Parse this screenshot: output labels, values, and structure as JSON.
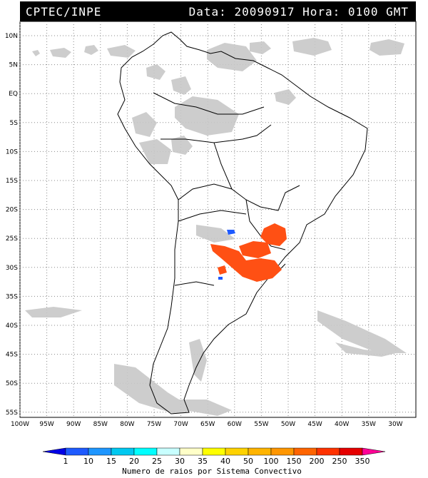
{
  "header": {
    "source": "CPTEC/INPE",
    "datetime": "Data: 20090917 Hora: 0100 GMT"
  },
  "axes": {
    "lat_labels": [
      "10N",
      "5N",
      "EQ",
      "5S",
      "10S",
      "15S",
      "20S",
      "25S",
      "30S",
      "35S",
      "40S",
      "45S",
      "50S",
      "55S"
    ],
    "lon_labels": [
      "100W",
      "95W",
      "90W",
      "85W",
      "80W",
      "75W",
      "70W",
      "65W",
      "60W",
      "55W",
      "50W",
      "45W",
      "40W",
      "35W",
      "30W"
    ]
  },
  "legend": {
    "title": "Numero de raios por Sistema Convectivo",
    "labels": [
      "1",
      "10",
      "15",
      "20",
      "25",
      "30",
      "35",
      "40",
      "50",
      "100",
      "150",
      "200",
      "250",
      "350"
    ],
    "colors": [
      "#0000e6",
      "#1e5aff",
      "#1e96ff",
      "#00c8f0",
      "#00ffff",
      "#c8ffff",
      "#ffffc8",
      "#ffff00",
      "#ffd200",
      "#ffb400",
      "#ff9600",
      "#ff6400",
      "#ff3200",
      "#e60000",
      "#ff0096"
    ]
  },
  "colors": {
    "cloud": "#c8c8c8",
    "activity": "#ff5014",
    "blue_cell": "#1e5aff",
    "coast": "#000000"
  }
}
